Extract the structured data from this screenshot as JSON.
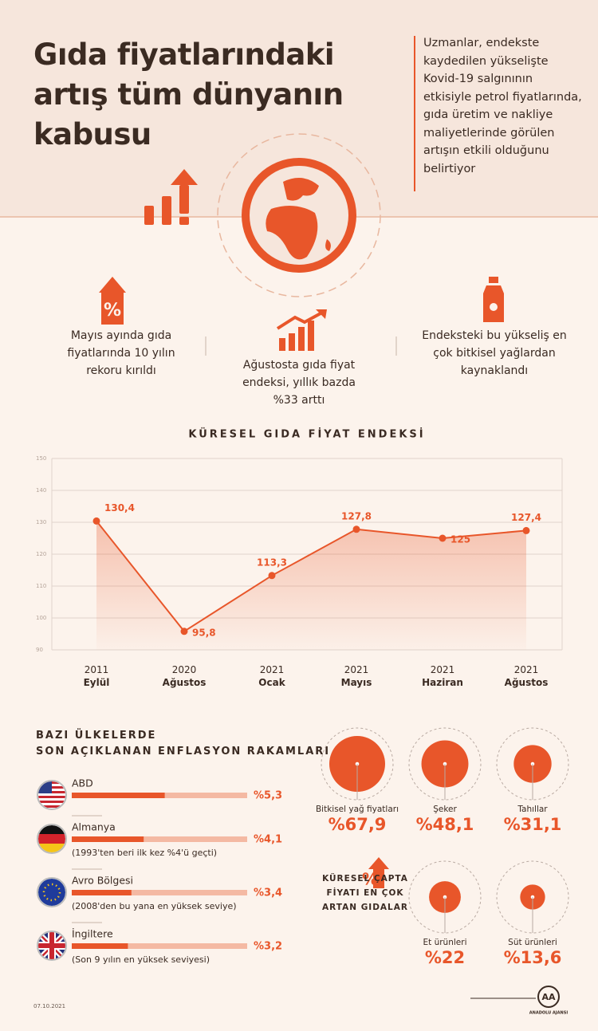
{
  "title": "Gıda fiyatlarındaki artış tüm dünyanın kabusu",
  "intro": "Uzmanlar, endekste kaydedilen yükselişte Kovid-19 salgınının etkisiyle petrol fiyatlarında, gıda üretim ve nakliye maliyetlerinde görülen artışın etkili olduğunu belirtiyor",
  "facts": [
    "Mayıs ayında gıda fiyatlarında 10 yılın rekoru kırıldı",
    "Ağustosta gıda fiyat endeksi, yıllık bazda %33 arttı",
    "Endeksteki bu yükseliş en çok bitkisel yağlardan kaynaklandı"
  ],
  "chart_data": [
    {
      "type": "line",
      "title": "KÜRESEL GIDA FİYAT ENDEKSİ",
      "categories": [
        "2011 Eylül",
        "2020 Ağustos",
        "2021 Ocak",
        "2021 Mayıs",
        "2021 Haziran",
        "2021 Ağustos"
      ],
      "values": [
        130.4,
        95.8,
        113.3,
        127.8,
        125,
        127.4
      ],
      "value_labels": [
        "130,4",
        "95,8",
        "113,3",
        "127,8",
        "125",
        "127,4"
      ],
      "color": "#e8562a",
      "ylim": [
        90,
        150
      ],
      "yticks": [
        90,
        100,
        110,
        120,
        130,
        140,
        150
      ],
      "grid": true
    },
    {
      "type": "bar",
      "title": "BAZI ÜLKELERDE SON AÇIKLANAN ENFLASYON RAKAMLARI",
      "categories": [
        "ABD",
        "Almanya",
        "Avro Bölgesi",
        "İngiltere"
      ],
      "notes": [
        null,
        "(1993'ten beri ilk kez %4'ü geçti)",
        "(2008'den bu yana en yüksek seviye)",
        "(Son 9 yılın en yüksek seviyesi)"
      ],
      "values": [
        5.3,
        4.1,
        3.4,
        3.2
      ],
      "value_labels": [
        "%5,3",
        "%4,1",
        "%3,4",
        "%3,2"
      ],
      "color": "#e8562a",
      "xlim": [
        0,
        10
      ]
    },
    {
      "type": "bubble",
      "title": "KÜRESEL ÇAPTA FİYATI EN ÇOK ARTAN GIDALAR",
      "categories": [
        "Bitkisel yağ fiyatları",
        "Şeker",
        "Tahıllar",
        "Et ürünleri",
        "Süt ürünleri"
      ],
      "values": [
        67.9,
        48.1,
        31.1,
        22,
        13.6
      ],
      "value_labels": [
        "%67,9",
        "%48,1",
        "%31,1",
        "%22",
        "%13,6"
      ],
      "color": "#e8562a"
    }
  ],
  "footer": {
    "date": "07.10.2021",
    "logo_mark": "AA",
    "logo": "ANADOLU AJANSI"
  }
}
